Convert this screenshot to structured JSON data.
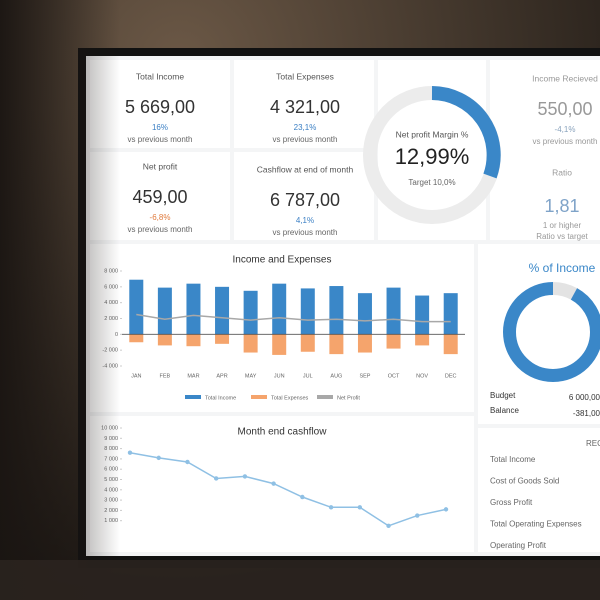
{
  "kpis": [
    {
      "label": "Total Income",
      "value": "5 669,00",
      "change": "16%",
      "note": "vs previous month",
      "color": "#3a7fc4"
    },
    {
      "label": "Total Expenses",
      "value": "4 321,00",
      "change": "23,1%",
      "note": "vs previous month",
      "color": "#3a7fc4"
    },
    {
      "label": "Income Recieved",
      "value": "550,00",
      "change": "-4,1%",
      "note": "vs previous month",
      "color": "#8aa3bd"
    },
    {
      "label": "Net profit",
      "value": "459,00",
      "change": "-6,8%",
      "note": "vs previous month",
      "color": "#e07a3c"
    },
    {
      "label": "Cashflow at end of month",
      "value": "6 787,00",
      "change": "4,1%",
      "note": "vs previous month",
      "color": "#3a7fc4"
    }
  ],
  "gauge": {
    "label": "Net profit Margin %",
    "value": "12,99%",
    "target": "Target 10,0%"
  },
  "ratio": {
    "label": "Ratio",
    "value": "1,81",
    "note": "1 or higher",
    "note2": "Ratio vs target"
  },
  "chart_data": [
    {
      "type": "bar",
      "title": "Income and Expenses",
      "categories": [
        "JAN",
        "FEB",
        "MAR",
        "APR",
        "MAY",
        "JUN",
        "JUL",
        "AUG",
        "SEP",
        "OCT",
        "NOV",
        "DEC"
      ],
      "series": [
        {
          "name": "Total Income",
          "type": "bar",
          "color": "#3a87c8",
          "values": [
            6900,
            5900,
            6400,
            6000,
            5500,
            6400,
            5800,
            6100,
            5200,
            5900,
            4900,
            5200
          ]
        },
        {
          "name": "Total Expenses",
          "type": "bar",
          "color": "#f5a46c",
          "values": [
            -1000,
            -1400,
            -1500,
            -1200,
            -2300,
            -2600,
            -2200,
            -2500,
            -2300,
            -1800,
            -1400,
            -2500
          ]
        },
        {
          "name": "Net Profit",
          "type": "line",
          "color": "#a8a8a8",
          "values": [
            2500,
            1900,
            2400,
            2100,
            1800,
            2100,
            1800,
            1900,
            1700,
            1900,
            1600,
            1600
          ]
        }
      ],
      "ylim": [
        -4000,
        8000
      ],
      "yticks": [
        {
          "value": 8000,
          "label": "8 000"
        },
        {
          "value": 6000,
          "label": "6 000"
        },
        {
          "value": 4000,
          "label": "4 000"
        },
        {
          "value": 2000,
          "label": "2 000"
        },
        0,
        {
          "value": -2000,
          "label": "-2 000"
        },
        {
          "value": -4000,
          "label": "-4 000"
        }
      ]
    },
    {
      "type": "line",
      "title": "Month end cashflow",
      "color": "#8fc0e4",
      "values": [
        7600,
        7100,
        6700,
        5100,
        5300,
        4600,
        3300,
        2300,
        2300,
        500,
        1500,
        2100
      ],
      "ylim": [
        0,
        10000
      ],
      "yticks": [
        {
          "value": 10000,
          "label": "10 000"
        },
        {
          "value": 9000,
          "label": "9 000"
        },
        {
          "value": 8000,
          "label": "8 000"
        },
        {
          "value": 7000,
          "label": "7 000"
        },
        {
          "value": 6000,
          "label": "6 000"
        },
        {
          "value": 5000,
          "label": "5 000"
        },
        {
          "value": 4000,
          "label": "4 000"
        },
        {
          "value": 3000,
          "label": "3 000"
        },
        {
          "value": 2000,
          "label": "2 000"
        },
        {
          "value": 1000,
          "label": "1 000"
        }
      ]
    },
    {
      "type": "pie",
      "title": "% of Income",
      "values": [
        8,
        92
      ],
      "colors": [
        "#e3e3e3",
        "#3a87c8"
      ]
    }
  ],
  "budget": {
    "label": "Budget",
    "value": "6 000,00"
  },
  "balance": {
    "label": "Balance",
    "value": "-381,00"
  },
  "report": {
    "title": "REC",
    "rows": [
      "Total Income",
      "Cost of Goods Sold",
      "Gross Profit",
      "Total Operating Expenses",
      "Operating Profit"
    ]
  }
}
